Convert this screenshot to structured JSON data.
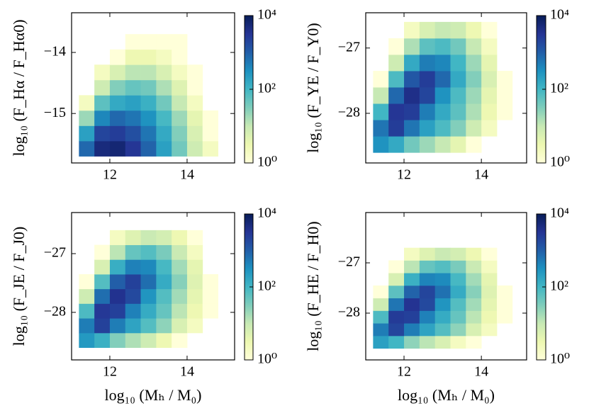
{
  "chart_data": [
    {
      "type": "hist2d",
      "ylabel": "log₁₀ (F_Hα / F_Hα0)",
      "cmap": "YlGnBu",
      "xlim": [
        11.01,
        15.23
      ],
      "ylim": [
        -15.81,
        -13.35
      ],
      "xticks": [
        12,
        14
      ],
      "yticks": [
        {
          "value": -15,
          "label": "−15"
        },
        {
          "value": -14,
          "label": "−14"
        }
      ],
      "xbins": [
        11.2,
        11.6,
        12.0,
        12.4,
        12.8,
        13.2,
        13.6,
        14.0,
        14.4,
        14.8,
        15.2
      ],
      "ybins": [
        -15.7,
        -15.45,
        -15.2,
        -14.95,
        -14.7,
        -14.45,
        -14.2,
        -13.95,
        -13.7
      ],
      "counts": [
        [
          800,
          5000,
          6000,
          3000,
          900,
          200,
          40,
          8,
          2,
          null
        ],
        [
          200,
          2000,
          2500,
          1500,
          600,
          150,
          30,
          6,
          1,
          null
        ],
        [
          20,
          400,
          800,
          600,
          300,
          90,
          20,
          4,
          1,
          null
        ],
        [
          2,
          60,
          150,
          200,
          120,
          40,
          10,
          2,
          null,
          null
        ],
        [
          null,
          8,
          30,
          50,
          40,
          15,
          5,
          1,
          null,
          null
        ],
        [
          null,
          2,
          6,
          12,
          12,
          6,
          2,
          1,
          null,
          null
        ],
        [
          null,
          null,
          1,
          3,
          3,
          2,
          1,
          null,
          null,
          null
        ],
        [
          null,
          null,
          null,
          1,
          1,
          1,
          1,
          null,
          null,
          null
        ]
      ],
      "colorbar": {
        "scale": "log",
        "lim": [
          1,
          10000
        ],
        "ticks": [
          {
            "value": 1,
            "label": "10⁰"
          },
          {
            "value": 100,
            "label": "10²"
          },
          {
            "value": 10000,
            "label": "10⁴"
          }
        ]
      }
    },
    {
      "type": "hist2d",
      "ylabel": "log₁₀ (F_YE / F_Y0)",
      "cmap": "YlGnBu",
      "xlim": [
        11.01,
        15.17
      ],
      "ylim": [
        -28.76,
        -26.46
      ],
      "xticks": [
        12,
        14
      ],
      "yticks": [
        {
          "value": -28,
          "label": "−28"
        },
        {
          "value": -27,
          "label": "−27"
        }
      ],
      "xbins": [
        11.2,
        11.6,
        12.0,
        12.4,
        12.8,
        13.2,
        13.6,
        14.0,
        14.4,
        14.8,
        15.2
      ],
      "ybins": [
        -28.6,
        -28.35,
        -28.1,
        -27.85,
        -27.6,
        -27.35,
        -27.1,
        -26.85,
        -26.6
      ],
      "counts": [
        [
          300,
          150,
          40,
          20,
          10,
          4,
          1,
          null,
          null,
          null
        ],
        [
          600,
          2500,
          600,
          200,
          80,
          30,
          8,
          2,
          null,
          null
        ],
        [
          100,
          3000,
          2500,
          500,
          150,
          60,
          15,
          3,
          1,
          null
        ],
        [
          10,
          800,
          4000,
          2000,
          300,
          80,
          20,
          4,
          1,
          null
        ],
        [
          1,
          80,
          1200,
          2500,
          800,
          150,
          30,
          6,
          1,
          null
        ],
        [
          null,
          8,
          150,
          500,
          400,
          100,
          20,
          4,
          null,
          null
        ],
        [
          null,
          1,
          15,
          60,
          80,
          40,
          10,
          2,
          null,
          null
        ],
        [
          null,
          null,
          2,
          6,
          10,
          8,
          3,
          1,
          null,
          null
        ]
      ],
      "colorbar": {
        "scale": "log",
        "lim": [
          1,
          10000
        ],
        "ticks": [
          {
            "value": 1,
            "label": "10⁰"
          },
          {
            "value": 100,
            "label": "10²"
          },
          {
            "value": 10000,
            "label": "10⁴"
          }
        ]
      }
    },
    {
      "type": "hist2d",
      "xlabel": "log₁₀ (Mₕ / M₀)",
      "ylabel": "log₁₀ (F_JE / F_J0)",
      "cmap": "YlGnBu",
      "xlim": [
        11.01,
        15.23
      ],
      "ylim": [
        -28.81,
        -26.3
      ],
      "xticks": [
        12,
        14
      ],
      "yticks": [
        {
          "value": -28,
          "label": "−28"
        },
        {
          "value": -27,
          "label": "−27"
        }
      ],
      "xbins": [
        11.2,
        11.6,
        12.0,
        12.4,
        12.8,
        13.2,
        13.6,
        14.0,
        14.4,
        14.8,
        15.2
      ],
      "ybins": [
        -28.6,
        -28.35,
        -28.1,
        -27.85,
        -27.6,
        -27.35,
        -27.1,
        -26.85,
        -26.6
      ],
      "counts": [
        [
          250,
          120,
          30,
          15,
          8,
          3,
          1,
          null,
          null,
          null
        ],
        [
          500,
          2200,
          500,
          180,
          70,
          25,
          6,
          2,
          null,
          null
        ],
        [
          80,
          2800,
          2300,
          450,
          140,
          50,
          12,
          3,
          1,
          null
        ],
        [
          8,
          700,
          3500,
          1800,
          280,
          70,
          18,
          4,
          1,
          null
        ],
        [
          1,
          70,
          1000,
          2200,
          700,
          140,
          28,
          5,
          1,
          null
        ],
        [
          null,
          6,
          130,
          450,
          380,
          90,
          18,
          4,
          null,
          null
        ],
        [
          null,
          1,
          12,
          50,
          70,
          35,
          9,
          2,
          null,
          null
        ],
        [
          null,
          null,
          2,
          5,
          9,
          7,
          3,
          1,
          null,
          null
        ]
      ],
      "colorbar": {
        "scale": "log",
        "lim": [
          1,
          10000
        ],
        "ticks": [
          {
            "value": 1,
            "label": "10⁰"
          },
          {
            "value": 100,
            "label": "10²"
          },
          {
            "value": 10000,
            "label": "10⁴"
          }
        ]
      }
    },
    {
      "type": "hist2d",
      "xlabel": "log₁₀ (Mₕ / M₀)",
      "ylabel": "log₁₀ (F_HE / F_H0)",
      "cmap": "YlGnBu",
      "xlim": [
        11.01,
        15.17
      ],
      "ylim": [
        -28.93,
        -26.0
      ],
      "xticks": [
        12,
        14
      ],
      "yticks": [
        {
          "value": -28,
          "label": "−28"
        },
        {
          "value": -27,
          "label": "−27"
        }
      ],
      "xbins": [
        11.2,
        11.6,
        12.0,
        12.4,
        12.8,
        13.2,
        13.6,
        14.0,
        14.4,
        14.8,
        15.2
      ],
      "ybins": [
        -28.7,
        -28.45,
        -28.2,
        -27.95,
        -27.7,
        -27.45,
        -27.2,
        -26.95,
        -26.7
      ],
      "counts": [
        [
          200,
          100,
          25,
          12,
          6,
          2,
          1,
          null,
          null,
          null
        ],
        [
          500,
          2000,
          500,
          180,
          70,
          25,
          6,
          2,
          null,
          null
        ],
        [
          80,
          2600,
          2300,
          450,
          140,
          50,
          12,
          3,
          1,
          null
        ],
        [
          8,
          600,
          3300,
          1800,
          280,
          70,
          18,
          4,
          1,
          null
        ],
        [
          1,
          60,
          900,
          2000,
          650,
          140,
          28,
          5,
          1,
          null
        ],
        [
          null,
          6,
          120,
          420,
          360,
          90,
          18,
          4,
          null,
          null
        ],
        [
          null,
          1,
          12,
          50,
          70,
          35,
          9,
          2,
          null,
          null
        ],
        [
          null,
          null,
          2,
          5,
          9,
          7,
          3,
          1,
          null,
          null
        ]
      ],
      "colorbar": {
        "scale": "log",
        "lim": [
          1,
          10000
        ],
        "ticks": [
          {
            "value": 1,
            "label": "10⁰"
          },
          {
            "value": 100,
            "label": "10²"
          },
          {
            "value": 10000,
            "label": "10⁴"
          }
        ]
      }
    }
  ]
}
